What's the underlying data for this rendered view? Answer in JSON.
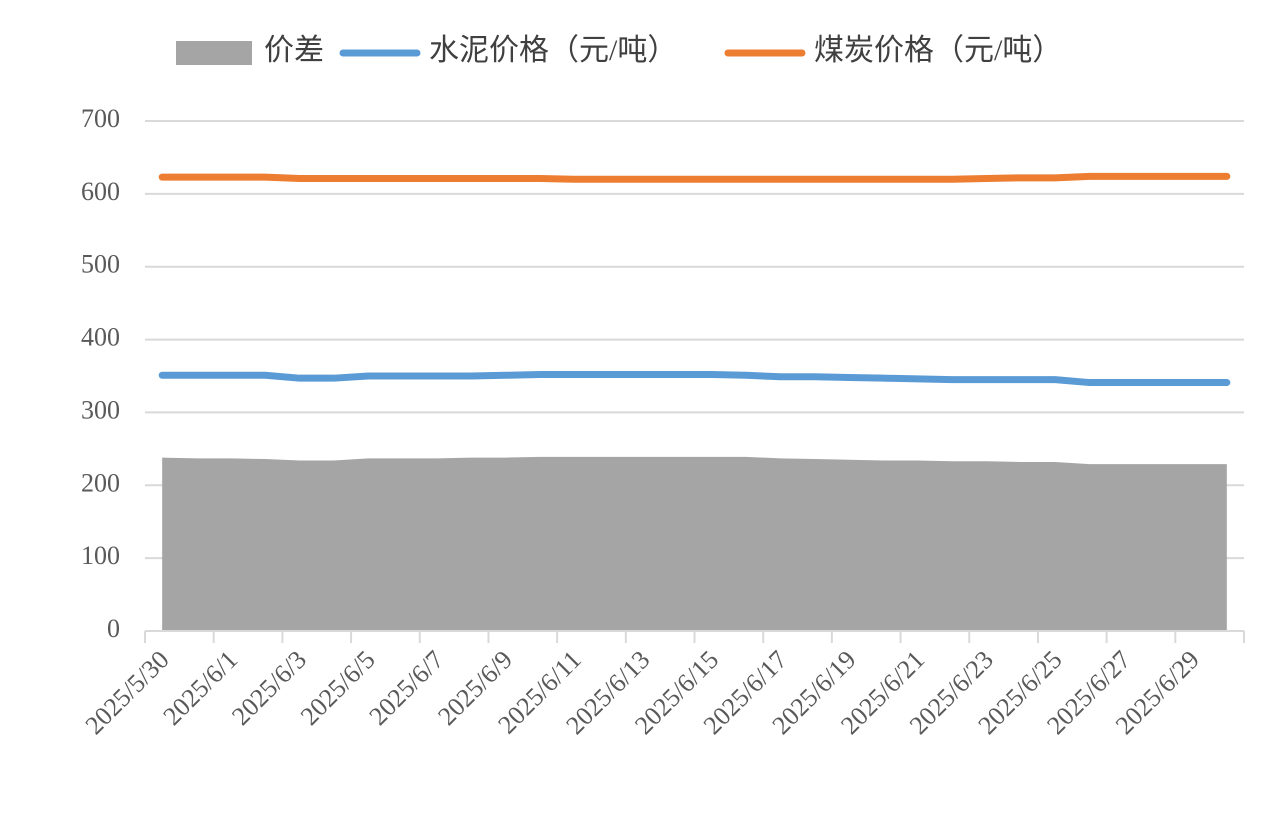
{
  "chart_data": {
    "type": "line",
    "categories": [
      "2025/5/30",
      null,
      "2025/6/1",
      null,
      "2025/6/3",
      null,
      "2025/6/5",
      null,
      "2025/6/7",
      null,
      "2025/6/9",
      null,
      "2025/6/11",
      null,
      "2025/6/13",
      null,
      "2025/6/15",
      null,
      "2025/6/17",
      null,
      "2025/6/19",
      null,
      "2025/6/21",
      null,
      "2025/6/23",
      null,
      "2025/6/25",
      null,
      "2025/6/27",
      null,
      "2025/6/29",
      null
    ],
    "series": [
      {
        "name": "价差",
        "kind": "area",
        "color": "#a5a5a5",
        "values": [
          238,
          237,
          237,
          236,
          234,
          234,
          237,
          237,
          237,
          238,
          238,
          239,
          239,
          239,
          239,
          239,
          239,
          239,
          237,
          236,
          235,
          234,
          234,
          233,
          233,
          232,
          232,
          229,
          229,
          229,
          229,
          229
        ]
      },
      {
        "name": "水泥价格（元/吨）",
        "kind": "line",
        "color": "#5b9bd5",
        "values": [
          351,
          351,
          351,
          351,
          347,
          347,
          350,
          350,
          350,
          350,
          351,
          352,
          352,
          352,
          352,
          352,
          352,
          351,
          349,
          349,
          348,
          347,
          346,
          345,
          345,
          345,
          345,
          341,
          341,
          341,
          341,
          341
        ]
      },
      {
        "name": "煤炭价格（元/吨）",
        "kind": "line",
        "color": "#ed7d31",
        "values": [
          623,
          623,
          623,
          623,
          621,
          621,
          621,
          621,
          621,
          621,
          621,
          621,
          620,
          620,
          620,
          620,
          620,
          620,
          620,
          620,
          620,
          620,
          620,
          620,
          621,
          622,
          622,
          624,
          624,
          624,
          624,
          624
        ]
      }
    ],
    "ylim": [
      0,
      700
    ],
    "yticks": [
      0,
      100,
      200,
      300,
      400,
      500,
      600,
      700
    ],
    "grid": true
  }
}
